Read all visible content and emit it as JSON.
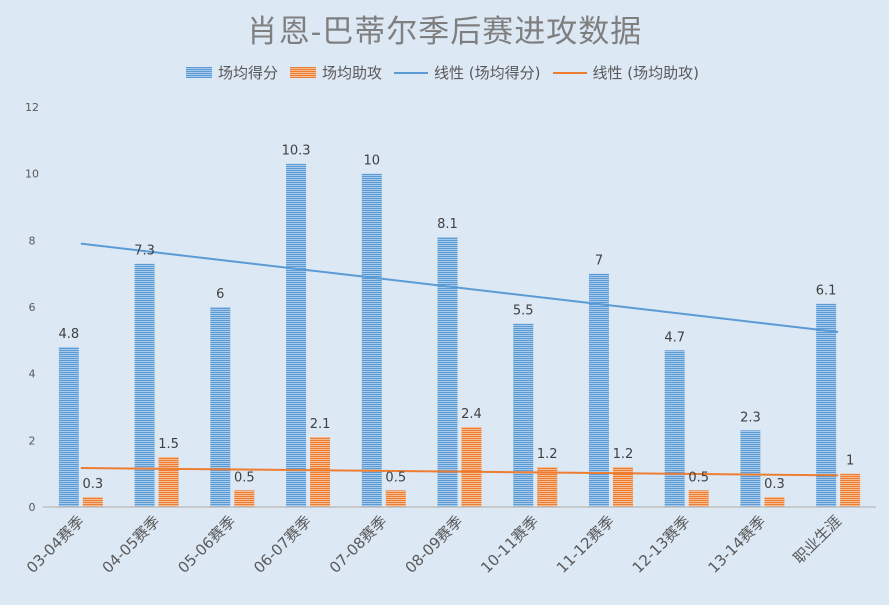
{
  "title": "肖恩-巴蒂尔季后赛进攻数据",
  "legend": [
    {
      "label": "场均得分",
      "type": "bar",
      "color": "#5b9bd5"
    },
    {
      "label": "场均助攻",
      "type": "bar",
      "color": "#ed7d31"
    },
    {
      "label": "线性 (场均得分)",
      "type": "line",
      "color": "#5b9bd5"
    },
    {
      "label": "线性 (场均助攻)",
      "type": "line",
      "color": "#ed7d31"
    }
  ],
  "chart_data": {
    "type": "bar",
    "title": "肖恩-巴蒂尔季后赛进攻数据",
    "xlabel": "",
    "ylabel": "",
    "ylim": [
      0,
      12
    ],
    "yticks": [
      0,
      2,
      4,
      6,
      8,
      10,
      12
    ],
    "grid": false,
    "legend_position": "top",
    "categories": [
      "03-04赛季",
      "04-05赛季",
      "05-06赛季",
      "06-07赛季",
      "07-08赛季",
      "08-09赛季",
      "10-11赛季",
      "11-12赛季",
      "12-13赛季",
      "13-14赛季",
      "职业生涯"
    ],
    "series": [
      {
        "name": "场均得分",
        "values": [
          4.8,
          7.3,
          6,
          10.3,
          10,
          8.1,
          5.5,
          7,
          4.7,
          2.3,
          6.1
        ],
        "color": "#5b9bd5"
      },
      {
        "name": "场均助攻",
        "values": [
          0.3,
          1.5,
          0.5,
          2.1,
          0.5,
          2.4,
          1.2,
          1.2,
          0.5,
          0.3,
          1
        ],
        "color": "#ed7d31"
      }
    ],
    "trendlines": [
      {
        "name": "线性 (场均得分)",
        "type": "linear",
        "start": 7.9,
        "end": 5.25,
        "color": "#5b9bd5"
      },
      {
        "name": "线性 (场均助攻)",
        "type": "linear",
        "start": 1.17,
        "end": 0.95,
        "color": "#ed7d31"
      }
    ]
  }
}
